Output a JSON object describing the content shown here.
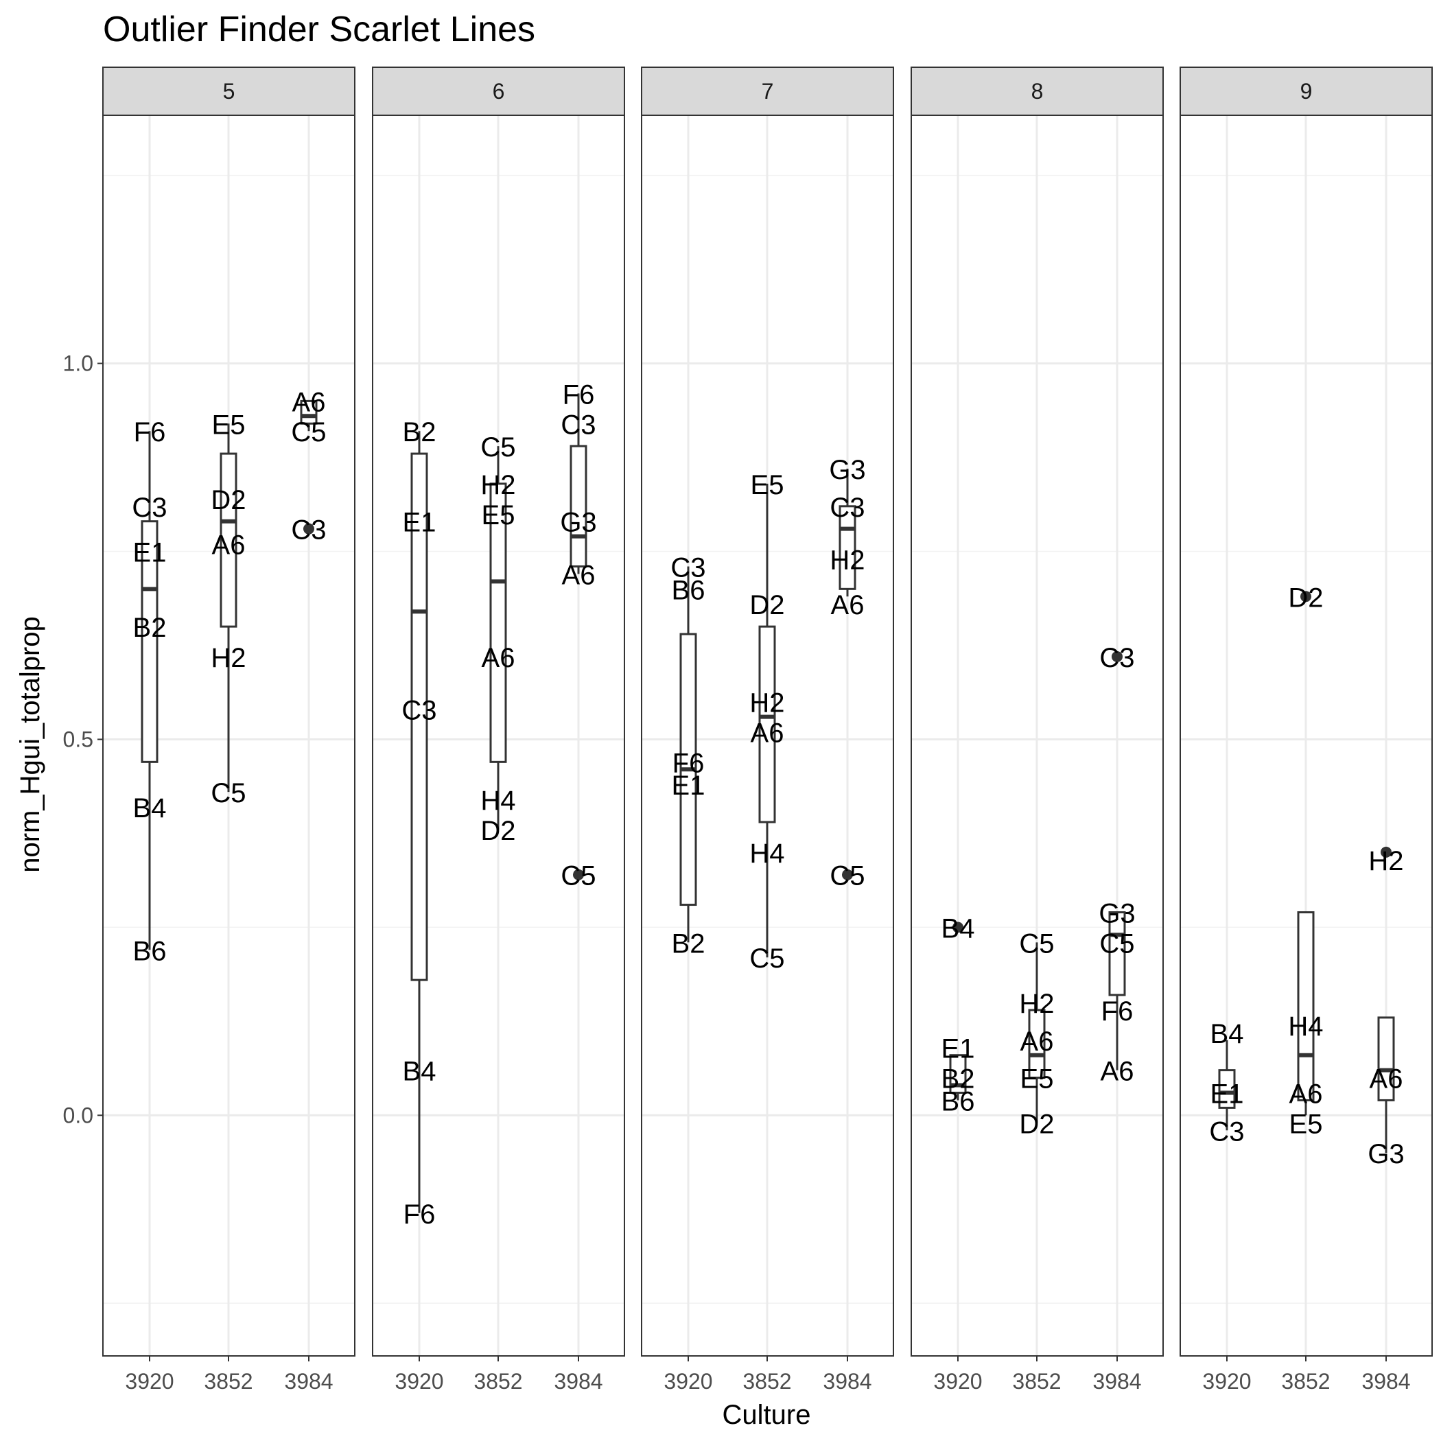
{
  "chart_data": {
    "type": "boxplot",
    "title": "Outlier Finder Scarlet Lines",
    "xlabel": "Culture",
    "ylabel": "norm_Hgui_totalprop",
    "ylim": [
      -0.32,
      1.33
    ],
    "y_ticks": [
      0.0,
      0.5,
      1.0
    ],
    "y_tick_labels": [
      "0.0",
      "0.5",
      "1.0"
    ],
    "categories": [
      "3920",
      "3852",
      "3984"
    ],
    "grid": true,
    "facets": [
      {
        "label": "5",
        "groups": [
          {
            "culture": "3920",
            "box": {
              "lower_whisker": 0.22,
              "q1": 0.47,
              "median": 0.7,
              "q3": 0.79,
              "upper_whisker": 0.91
            },
            "outliers": [],
            "points": [
              {
                "label": "F6",
                "y": 0.91
              },
              {
                "label": "C3",
                "y": 0.81
              },
              {
                "label": "E1",
                "y": 0.75
              },
              {
                "label": "B2",
                "y": 0.65
              },
              {
                "label": "B4",
                "y": 0.41
              },
              {
                "label": "B6",
                "y": 0.22
              }
            ]
          },
          {
            "culture": "3852",
            "box": {
              "lower_whisker": 0.43,
              "q1": 0.65,
              "median": 0.79,
              "q3": 0.88,
              "upper_whisker": 0.92
            },
            "outliers": [],
            "points": [
              {
                "label": "E5",
                "y": 0.92
              },
              {
                "label": "D2",
                "y": 0.82
              },
              {
                "label": "A6",
                "y": 0.76
              },
              {
                "label": "H2",
                "y": 0.61
              },
              {
                "label": "C5",
                "y": 0.43
              }
            ]
          },
          {
            "culture": "3984",
            "box": {
              "lower_whisker": 0.91,
              "q1": 0.92,
              "median": 0.93,
              "q3": 0.95,
              "upper_whisker": 0.95
            },
            "outliers": [
              0.78
            ],
            "points": [
              {
                "label": "A6",
                "y": 0.95
              },
              {
                "label": "C5",
                "y": 0.91
              },
              {
                "label": "C3",
                "y": 0.78
              }
            ]
          }
        ]
      },
      {
        "label": "6",
        "groups": [
          {
            "culture": "3920",
            "box": {
              "lower_whisker": -0.13,
              "q1": 0.18,
              "median": 0.67,
              "q3": 0.88,
              "upper_whisker": 0.91
            },
            "outliers": [],
            "points": [
              {
                "label": "B2",
                "y": 0.91
              },
              {
                "label": "E1",
                "y": 0.79
              },
              {
                "label": "C3",
                "y": 0.54
              },
              {
                "label": "B4",
                "y": 0.06
              },
              {
                "label": "F6",
                "y": -0.13
              }
            ]
          },
          {
            "culture": "3852",
            "box": {
              "lower_whisker": 0.38,
              "q1": 0.47,
              "median": 0.71,
              "q3": 0.84,
              "upper_whisker": 0.89
            },
            "outliers": [],
            "points": [
              {
                "label": "C5",
                "y": 0.89
              },
              {
                "label": "H2",
                "y": 0.84
              },
              {
                "label": "E5",
                "y": 0.8
              },
              {
                "label": "A6",
                "y": 0.61
              },
              {
                "label": "H4",
                "y": 0.42
              },
              {
                "label": "D2",
                "y": 0.38
              }
            ]
          },
          {
            "culture": "3984",
            "box": {
              "lower_whisker": 0.72,
              "q1": 0.73,
              "median": 0.77,
              "q3": 0.89,
              "upper_whisker": 0.96
            },
            "outliers": [
              0.32
            ],
            "points": [
              {
                "label": "F6",
                "y": 0.96
              },
              {
                "label": "C3",
                "y": 0.92
              },
              {
                "label": "G3",
                "y": 0.79
              },
              {
                "label": "A6",
                "y": 0.72
              },
              {
                "label": "C5",
                "y": 0.32
              }
            ]
          }
        ]
      },
      {
        "label": "7",
        "groups": [
          {
            "culture": "3920",
            "box": {
              "lower_whisker": 0.23,
              "q1": 0.28,
              "median": 0.46,
              "q3": 0.64,
              "upper_whisker": 0.73
            },
            "outliers": [],
            "points": [
              {
                "label": "C3",
                "y": 0.73
              },
              {
                "label": "B6",
                "y": 0.7
              },
              {
                "label": "F6",
                "y": 0.47
              },
              {
                "label": "E1",
                "y": 0.44
              },
              {
                "label": "B2",
                "y": 0.23
              }
            ]
          },
          {
            "culture": "3852",
            "box": {
              "lower_whisker": 0.21,
              "q1": 0.39,
              "median": 0.53,
              "q3": 0.65,
              "upper_whisker": 0.84
            },
            "outliers": [],
            "points": [
              {
                "label": "E5",
                "y": 0.84
              },
              {
                "label": "D2",
                "y": 0.68
              },
              {
                "label": "H2",
                "y": 0.55
              },
              {
                "label": "A6",
                "y": 0.51
              },
              {
                "label": "H4",
                "y": 0.35
              },
              {
                "label": "C5",
                "y": 0.21
              }
            ]
          },
          {
            "culture": "3984",
            "box": {
              "lower_whisker": 0.69,
              "q1": 0.7,
              "median": 0.78,
              "q3": 0.81,
              "upper_whisker": 0.86
            },
            "outliers": [
              0.32
            ],
            "points": [
              {
                "label": "G3",
                "y": 0.86
              },
              {
                "label": "C3",
                "y": 0.81
              },
              {
                "label": "H2",
                "y": 0.74
              },
              {
                "label": "A6",
                "y": 0.68
              },
              {
                "label": "C5",
                "y": 0.32
              }
            ]
          }
        ]
      },
      {
        "label": "8",
        "groups": [
          {
            "culture": "3920",
            "box": {
              "lower_whisker": 0.02,
              "q1": 0.03,
              "median": 0.04,
              "q3": 0.08,
              "upper_whisker": 0.08
            },
            "outliers": [
              0.25
            ],
            "points": [
              {
                "label": "B4",
                "y": 0.25
              },
              {
                "label": "E1",
                "y": 0.09
              },
              {
                "label": "B2",
                "y": 0.05
              },
              {
                "label": "B6",
                "y": 0.02
              }
            ]
          },
          {
            "culture": "3852",
            "box": {
              "lower_whisker": -0.01,
              "q1": 0.05,
              "median": 0.08,
              "q3": 0.14,
              "upper_whisker": 0.23
            },
            "outliers": [],
            "points": [
              {
                "label": "C5",
                "y": 0.23
              },
              {
                "label": "H2",
                "y": 0.15
              },
              {
                "label": "A6",
                "y": 0.1
              },
              {
                "label": "E5",
                "y": 0.05
              },
              {
                "label": "D2",
                "y": -0.01
              }
            ]
          },
          {
            "culture": "3984",
            "box": {
              "lower_whisker": 0.06,
              "q1": 0.16,
              "median": 0.24,
              "q3": 0.27,
              "upper_whisker": 0.27
            },
            "outliers": [
              0.61
            ],
            "points": [
              {
                "label": "C3",
                "y": 0.61
              },
              {
                "label": "G3",
                "y": 0.27
              },
              {
                "label": "C5",
                "y": 0.23
              },
              {
                "label": "F6",
                "y": 0.14
              },
              {
                "label": "A6",
                "y": 0.06
              }
            ]
          }
        ]
      },
      {
        "label": "9",
        "groups": [
          {
            "culture": "3920",
            "box": {
              "lower_whisker": -0.02,
              "q1": 0.01,
              "median": 0.03,
              "q3": 0.06,
              "upper_whisker": 0.1
            },
            "outliers": [],
            "points": [
              {
                "label": "B4",
                "y": 0.11
              },
              {
                "label": "E1",
                "y": 0.03
              },
              {
                "label": "C3",
                "y": -0.02
              }
            ]
          },
          {
            "culture": "3852",
            "box": {
              "lower_whisker": 0.0,
              "q1": 0.02,
              "median": 0.08,
              "q3": 0.27,
              "upper_whisker": 0.27
            },
            "outliers": [
              0.69
            ],
            "points": [
              {
                "label": "D2",
                "y": 0.69
              },
              {
                "label": "H4",
                "y": 0.12
              },
              {
                "label": "A6",
                "y": 0.03
              },
              {
                "label": "E5",
                "y": -0.01
              }
            ]
          },
          {
            "culture": "3984",
            "box": {
              "lower_whisker": -0.05,
              "q1": 0.02,
              "median": 0.06,
              "q3": 0.13,
              "upper_whisker": 0.13
            },
            "outliers": [
              0.35
            ],
            "points": [
              {
                "label": "H2",
                "y": 0.34
              },
              {
                "label": "A6",
                "y": 0.05
              },
              {
                "label": "G3",
                "y": -0.05
              }
            ]
          }
        ]
      }
    ]
  }
}
